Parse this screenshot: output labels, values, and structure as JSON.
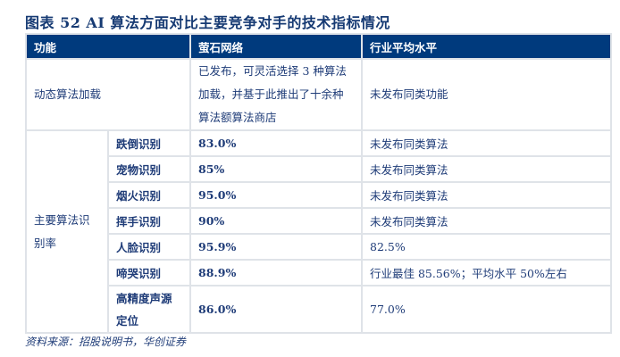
{
  "title": "图表 52   AI 算法方面对比主要竞争对手的技术指标情况",
  "headers": [
    "功能",
    "萤石网络",
    "行业平均水平"
  ],
  "row1": {
    "function": "动态算法加载",
    "ezviz": "已发布，可灵活选择 3 种算法加载，并基于此推出了十余种算法额算法商店",
    "industry": "未发布同类功能"
  },
  "group_label": "主要算法识别率",
  "rows": [
    {
      "name": "跌倒识别",
      "ezviz": "83.0%",
      "industry": "未发布同类算法"
    },
    {
      "name": "宠物识别",
      "ezviz": "85%",
      "industry": "未发布同类算法"
    },
    {
      "name": "烟火识别",
      "ezviz": "95.0%",
      "industry": "未发布同类算法"
    },
    {
      "name": "挥手识别",
      "ezviz": "90%",
      "industry": "未发布同类算法"
    },
    {
      "name": "人脸识别",
      "ezviz": "95.9%",
      "industry": "82.5%"
    },
    {
      "name": "啼哭识别",
      "ezviz": "88.9%",
      "industry": "行业最佳 85.56%；平均水平 50%左右"
    },
    {
      "name": "高精度声源定位",
      "ezviz": "86.0%",
      "industry": "77.0%"
    }
  ],
  "source": "资料来源：招股说明书，华创证券",
  "colors": {
    "header_bg": "#003a7d",
    "text": "#1f3c78"
  }
}
